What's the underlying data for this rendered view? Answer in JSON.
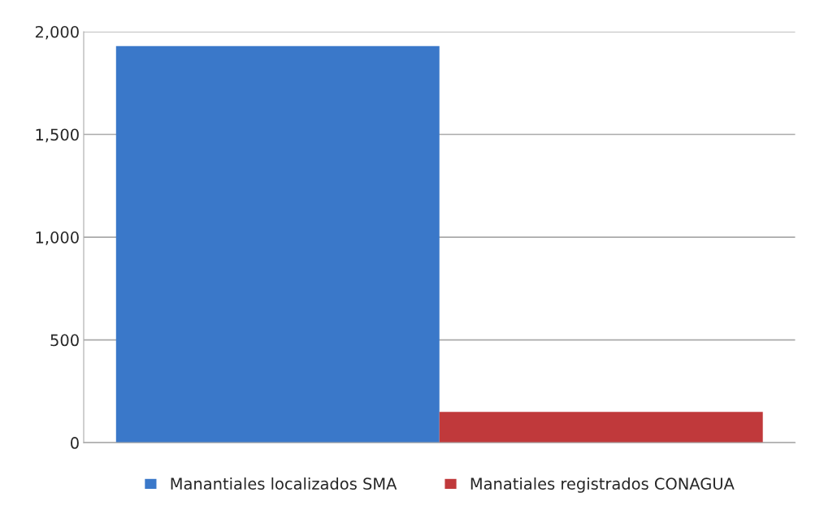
{
  "chart_data": {
    "type": "bar",
    "categories": [
      null
    ],
    "series": [
      {
        "name": "Manantiales localizados SMA",
        "color": "#3a78c9",
        "values": [
          1930
        ]
      },
      {
        "name": "Manatiales registrados CONAGUA",
        "color": "#c0393b",
        "values": [
          150
        ]
      }
    ],
    "ylim": [
      0,
      2000
    ],
    "yticks": [
      {
        "value": 0,
        "label": "0"
      },
      {
        "value": 500,
        "label": "500"
      },
      {
        "value": 1000,
        "label": "1,000"
      },
      {
        "value": 1500,
        "label": "1,500"
      },
      {
        "value": 2000,
        "label": "2,000"
      }
    ],
    "grid": "y",
    "legend": "bottom"
  }
}
